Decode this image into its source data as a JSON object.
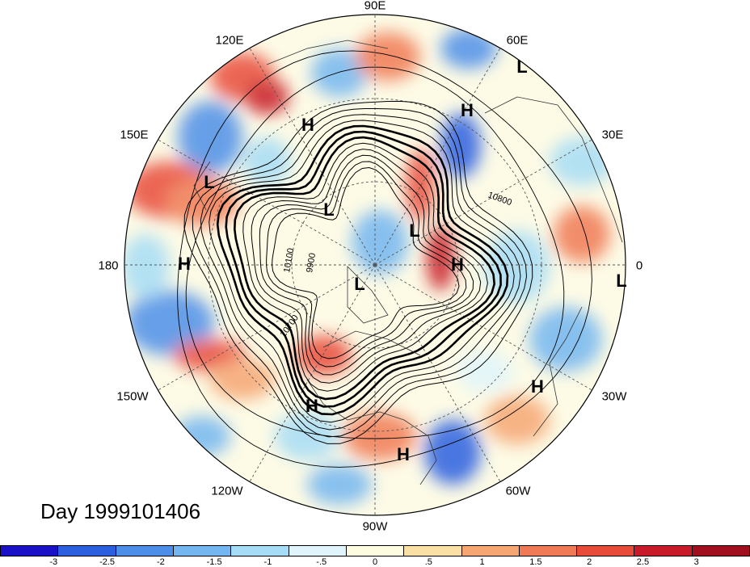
{
  "title": "Day 1999101406",
  "longitude_labels": {
    "lon_90e": "90E",
    "lon_60e": "60E",
    "lon_120e": "120E",
    "lon_150e": "150E",
    "lon_30e": "30E",
    "lon_180": "180",
    "lon_0": "0",
    "lon_150w": "150W",
    "lon_30w": "30W",
    "lon_120w": "120W",
    "lon_60w": "60W",
    "lon_90w": "90W"
  },
  "pressure_centers": [
    {
      "id": "l-1",
      "text": "L"
    },
    {
      "id": "h-1",
      "text": "H"
    },
    {
      "id": "h-2",
      "text": "H"
    },
    {
      "id": "l-2",
      "text": "L"
    },
    {
      "id": "l-3",
      "text": "L"
    },
    {
      "id": "l-4",
      "text": "L"
    },
    {
      "id": "h-3",
      "text": "H"
    },
    {
      "id": "h-4",
      "text": "H"
    },
    {
      "id": "l-5",
      "text": "L"
    },
    {
      "id": "l-6",
      "text": "L"
    },
    {
      "id": "h-5",
      "text": "H"
    },
    {
      "id": "h-6",
      "text": "H"
    },
    {
      "id": "h-7",
      "text": "H"
    }
  ],
  "contour_labels": {
    "c1": "10800",
    "c2": "10100",
    "c3": "9900",
    "c4": "10700"
  },
  "colorbar": {
    "colors": [
      "#1a10c8",
      "#2c5fe0",
      "#4d8fe8",
      "#73b6f0",
      "#a6dcf5",
      "#e0f5fb",
      "#fdfbe0",
      "#fbe0a6",
      "#f5a673",
      "#f07a55",
      "#e84b3a",
      "#c81a28",
      "#a0101e"
    ],
    "tick_labels": [
      "-3",
      "-2.5",
      "-2",
      "-1.5",
      "-1",
      "-.5",
      "0",
      ".5",
      "1",
      "1.5",
      "2",
      "2.5",
      "3"
    ]
  }
}
